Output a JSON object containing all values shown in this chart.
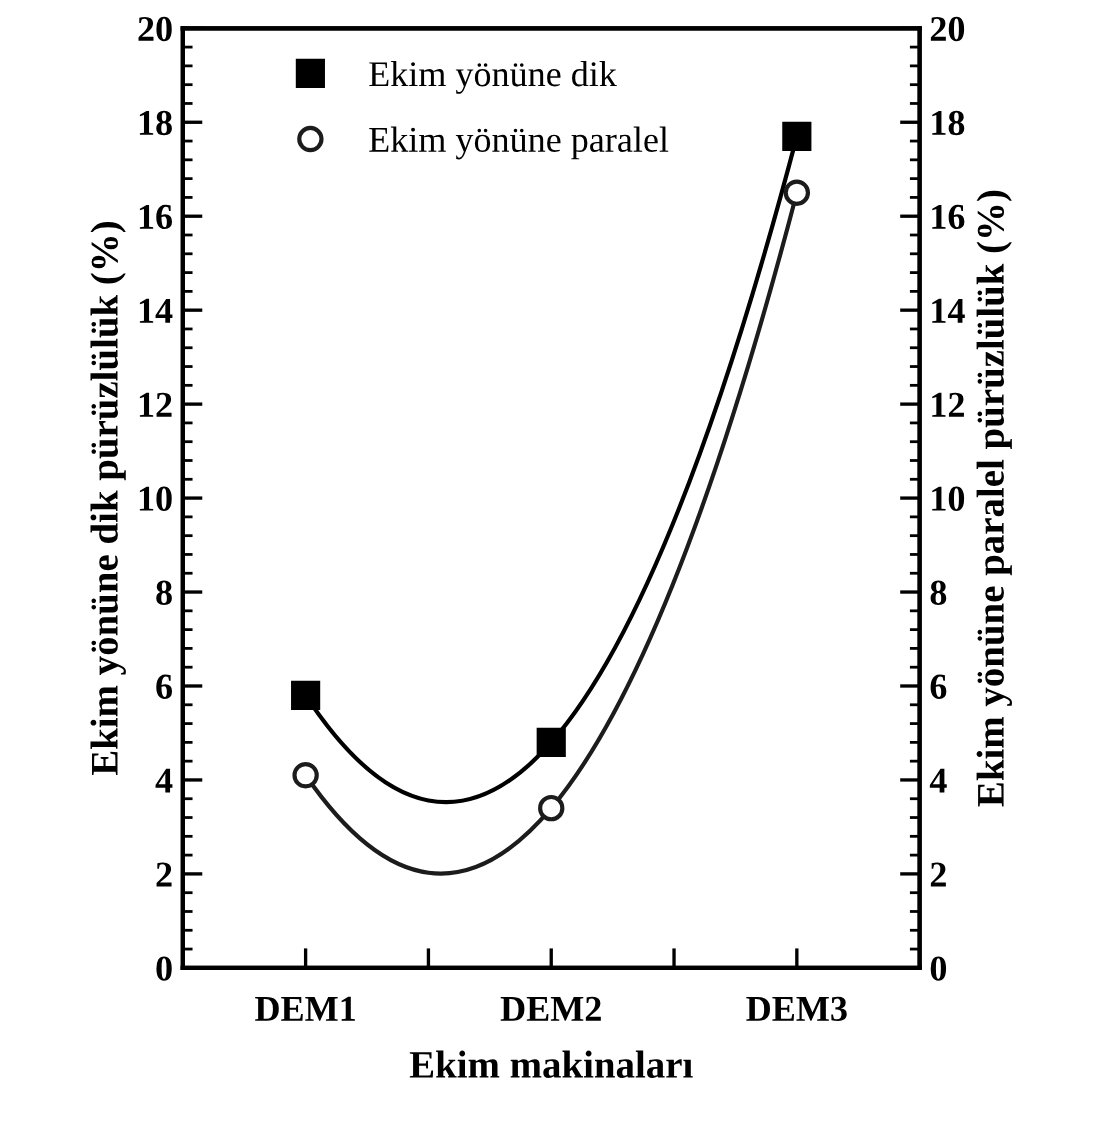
{
  "chart_data": {
    "type": "line",
    "xlabel": "Ekim makinaları",
    "ylabel": "Ekim yönüne dik pürüzlülük (%)",
    "y2label": "Ekim yönüne paralel pürüzlülük (%)",
    "categories": [
      "DEM1",
      "DEM2",
      "DEM3"
    ],
    "series": [
      {
        "name": "Ekim yönüne dik",
        "color": "#000000",
        "values": [
          5.8,
          4.8,
          17.7
        ],
        "marker": "square"
      },
      {
        "name": "Ekim yönüne paralel",
        "color": "#1c1c1c",
        "values": [
          4.1,
          3.4,
          16.5
        ],
        "marker": "circle"
      }
    ],
    "ylim": [
      0,
      20
    ],
    "yticks": [
      0,
      2,
      4,
      6,
      8,
      10,
      12,
      14,
      16,
      18,
      20
    ],
    "y2lim": [
      0,
      20
    ],
    "y2ticks": [
      0,
      2,
      4,
      6,
      8,
      10,
      12,
      14,
      16,
      18,
      20
    ],
    "legend": "top left",
    "grid": false,
    "line_style": "solid"
  }
}
